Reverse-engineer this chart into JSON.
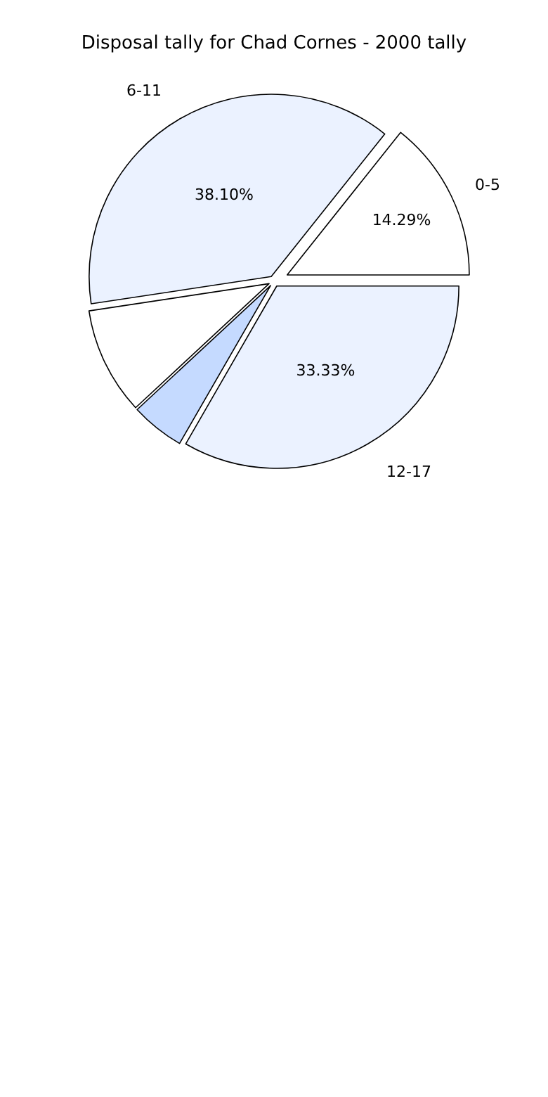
{
  "chart_data": {
    "type": "pie",
    "title": "Disposal tally for Chad Cornes - 2000 tally",
    "categories": [
      "0-5",
      "6-11",
      null,
      null,
      "12-17"
    ],
    "values": [
      14.29,
      38.1,
      9.52,
      4.76,
      33.33
    ],
    "colors": [
      "#ffffff",
      "#ebf2ff",
      "#ffffff",
      "#c5daff",
      "#ebf2ff"
    ],
    "value_labels": [
      "14.29%",
      "38.10%",
      null,
      null,
      "33.33%"
    ],
    "legend": false
  }
}
